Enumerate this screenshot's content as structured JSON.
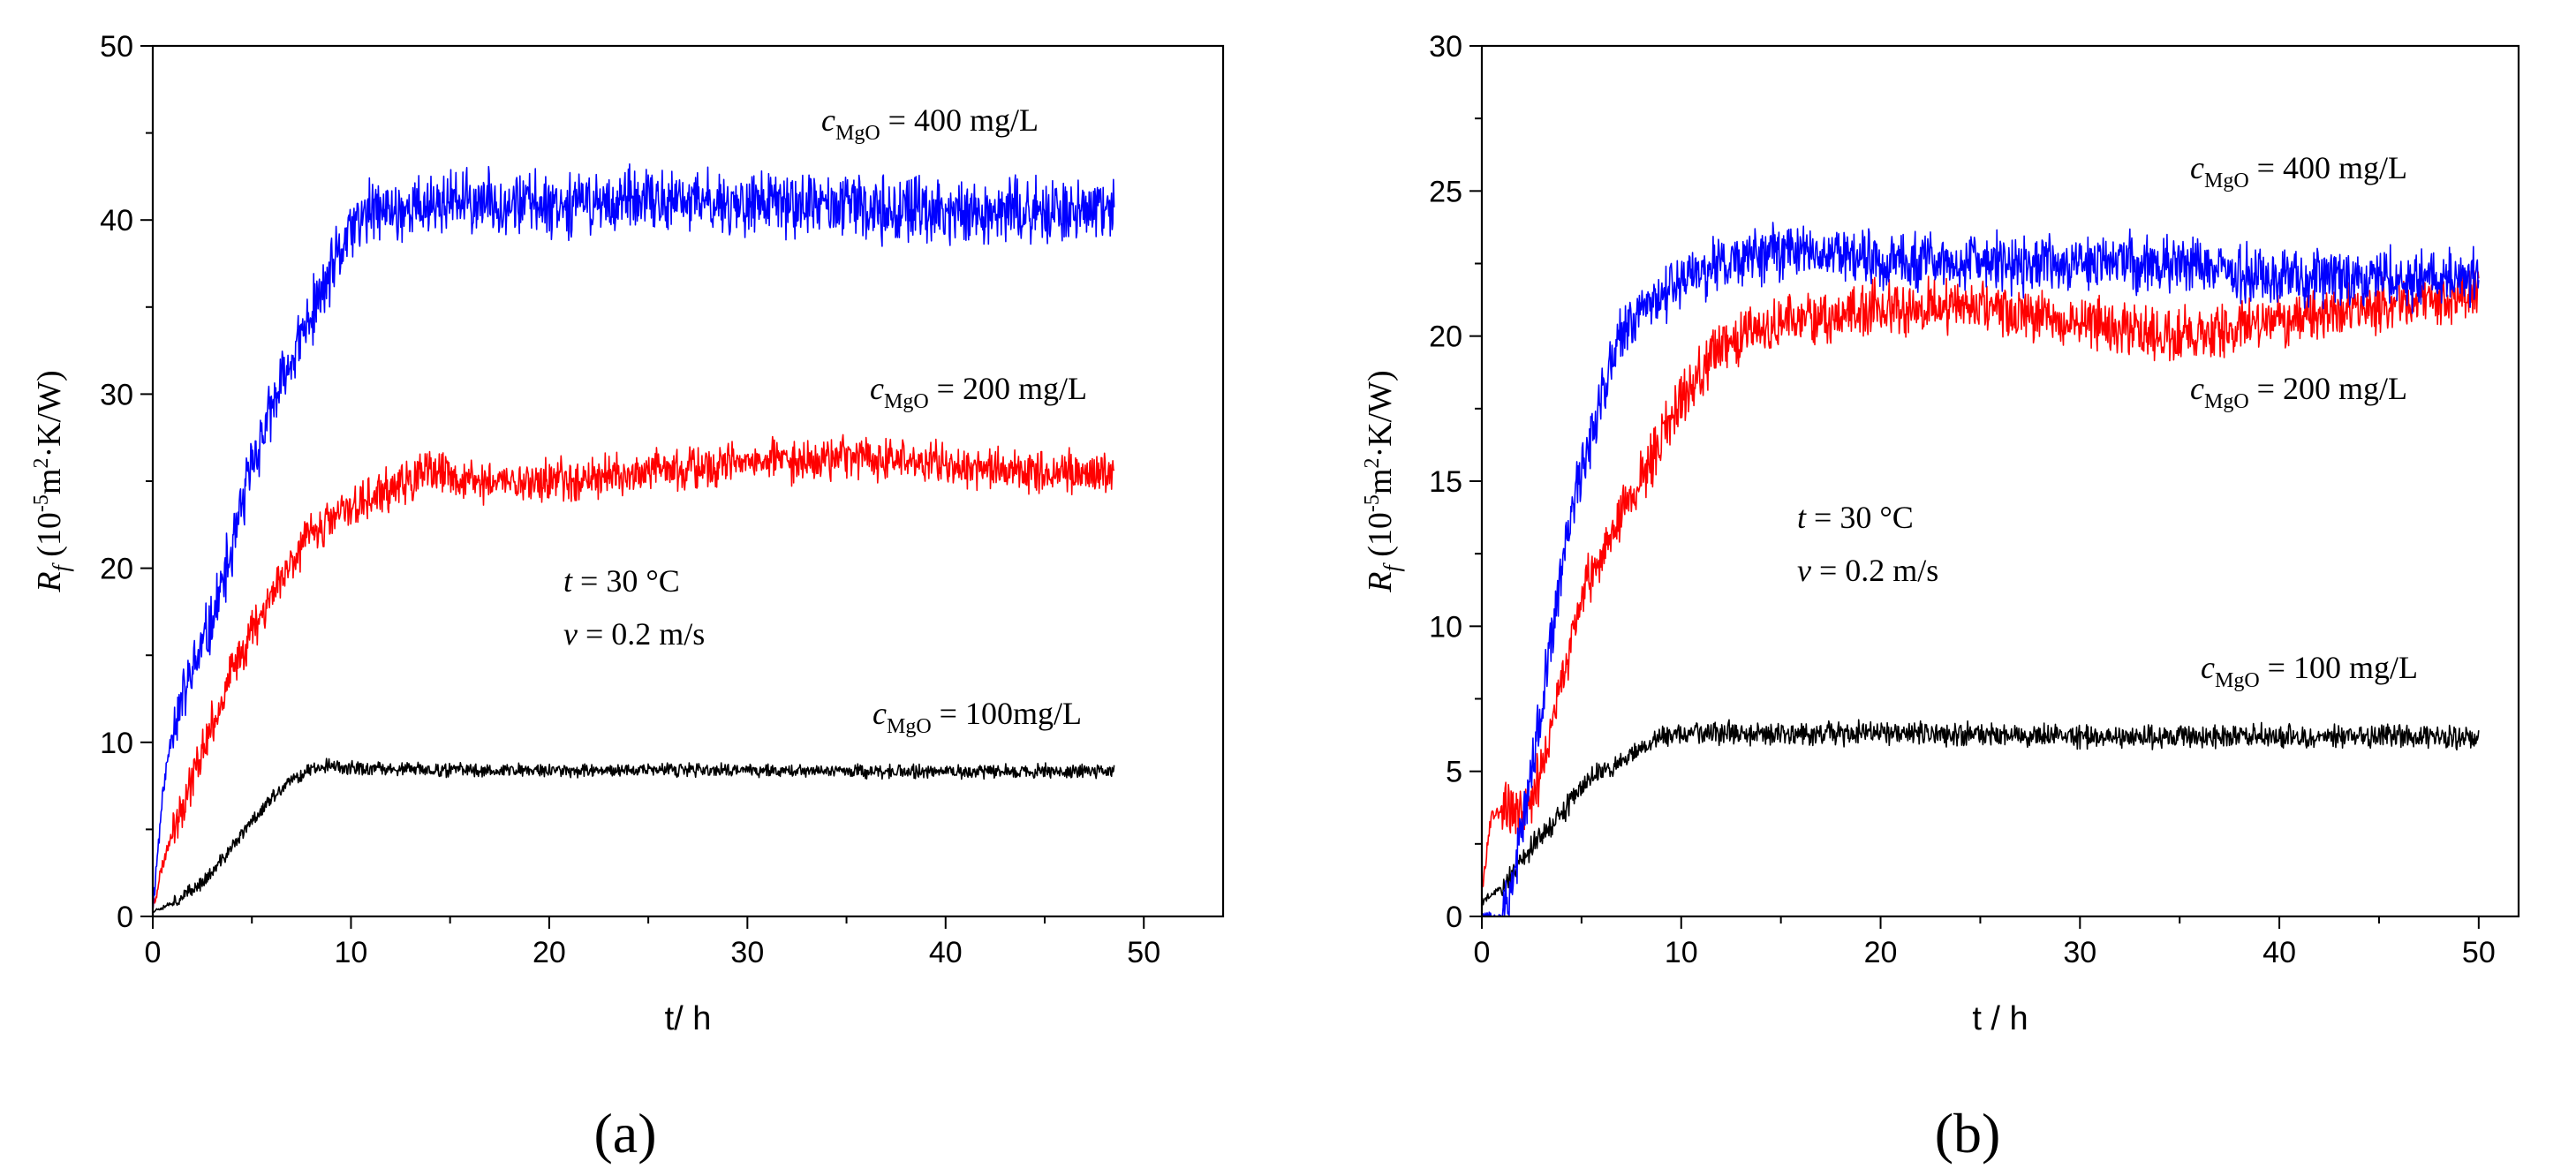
{
  "chart_data": [
    {
      "type": "line",
      "panel_label": "(a)",
      "xlabel": "t/ h",
      "ylabel": {
        "symbol": "R",
        "subscript": "f",
        "unit_pre": " (10",
        "sup1": "-5",
        "unit_mid": "m",
        "sup2": "2",
        "unit_post": "·K/W)"
      },
      "xlim": [
        0,
        54
      ],
      "ylim": [
        0,
        50
      ],
      "xticks": [
        0,
        10,
        20,
        30,
        40,
        50
      ],
      "yticks": [
        0,
        10,
        20,
        30,
        40,
        50
      ],
      "conditions": {
        "t_sym": "t",
        "t_rest": " = 30 °C",
        "v_sym": "v",
        "v_rest": " = 0.2 m/s"
      },
      "series": [
        {
          "name": "400 mg/L",
          "label_sym": "c",
          "label_sub": "MgO",
          "label_rest": " = 400 mg/L",
          "color": "#0000ff",
          "noise": 1.6,
          "seed": 11,
          "x": [
            0,
            0.5,
            1,
            2,
            3,
            4,
            5,
            6,
            7,
            8,
            9,
            10,
            11,
            12,
            15,
            20,
            30,
            40,
            48.5
          ],
          "y": [
            0.5,
            7,
            11,
            14,
            17,
            21,
            26,
            29,
            32,
            34.5,
            37,
            39.5,
            40.5,
            40.5,
            41,
            41,
            41,
            40.5,
            40.5
          ]
        },
        {
          "name": "200 mg/L",
          "label_sym": "c",
          "label_sub": "MgO",
          "label_rest": " = 200 mg/L",
          "color": "#ff0000",
          "noise": 1.1,
          "seed": 23,
          "x": [
            0,
            0.5,
            1,
            2,
            3,
            4,
            5,
            6,
            7,
            8,
            10,
            12,
            14,
            16,
            20,
            25,
            30,
            35,
            40,
            45,
            48.5
          ],
          "y": [
            0.5,
            3,
            5,
            8,
            11,
            14,
            16.5,
            18.5,
            20.5,
            22,
            23.5,
            24.5,
            25.5,
            25,
            25,
            25.5,
            26,
            26.5,
            26,
            25.5,
            25.5
          ]
        },
        {
          "name": "100 mg/L",
          "label_sym": "c",
          "label_sub": "MgO",
          "label_rest": " = 100mg/L",
          "color": "#000000",
          "noise": 0.35,
          "seed": 37,
          "x": [
            0,
            1,
            2,
            3,
            4,
            5,
            6,
            7,
            8,
            9,
            10,
            15,
            20,
            30,
            40,
            48.5
          ],
          "y": [
            0.3,
            0.8,
            1.5,
            2.5,
            4,
            5.5,
            6.8,
            7.8,
            8.5,
            8.7,
            8.5,
            8.4,
            8.4,
            8.4,
            8.3,
            8.4
          ]
        }
      ]
    },
    {
      "type": "line",
      "panel_label": "(b)",
      "xlabel": "t / h",
      "ylabel": {
        "symbol": "R",
        "subscript": "f",
        "unit_pre": " (10",
        "sup1": "-5",
        "unit_mid": "m",
        "sup2": "2",
        "unit_post": "·K/W)"
      },
      "xlim": [
        0,
        52
      ],
      "ylim": [
        0,
        30
      ],
      "xticks": [
        0,
        10,
        20,
        30,
        40,
        50
      ],
      "yticks": [
        0,
        5,
        10,
        15,
        20,
        25,
        30
      ],
      "conditions": {
        "t_sym": "t",
        "t_rest": " = 30 °C",
        "v_sym": "v",
        "v_rest": " = 0.2 m/s"
      },
      "series": [
        {
          "name": "400 mg/L",
          "label_sym": "c",
          "label_sub": "MgO",
          "label_rest": " = 400 mg/L",
          "color": "#0000ff",
          "noise": 0.9,
          "seed": 53,
          "x": [
            0,
            1,
            1.3,
            2,
            3,
            4,
            5,
            6,
            7,
            8,
            9,
            10,
            12,
            15,
            18,
            20,
            25,
            30,
            35,
            40,
            45,
            50
          ],
          "y": [
            0,
            0,
            0.5,
            3,
            7,
            12,
            15.5,
            18,
            20,
            21,
            21.5,
            22,
            22.5,
            23,
            23,
            22.5,
            22.5,
            22.5,
            22.5,
            22,
            22,
            22
          ]
        },
        {
          "name": "200 mg/L",
          "label_sym": "c",
          "label_sub": "MgO",
          "label_rest": " = 200 mg/L",
          "color": "#ff0000",
          "noise": 0.8,
          "seed": 67,
          "x": [
            0,
            0.5,
            1,
            2,
            3,
            4,
            5,
            6,
            7,
            8,
            9,
            10,
            12,
            15,
            20,
            25,
            30,
            35,
            40,
            45,
            50
          ],
          "y": [
            1,
            3.5,
            3.8,
            3.5,
            5,
            8,
            11,
            12.5,
            14,
            15,
            16.5,
            18,
            19.5,
            20.5,
            21,
            21,
            20.5,
            20,
            20.5,
            21,
            21.5
          ]
        },
        {
          "name": "100 mg/L",
          "label_sym": "c",
          "label_sub": "MgO",
          "label_rest": " = 100 mg/L",
          "color": "#000000",
          "noise": 0.35,
          "seed": 79,
          "x": [
            0,
            1,
            2,
            3,
            4,
            5,
            6,
            7,
            8,
            9,
            10,
            15,
            20,
            30,
            40,
            50
          ],
          "y": [
            0.5,
            1,
            2,
            2.8,
            3.5,
            4.5,
            5,
            5.3,
            5.8,
            6.2,
            6.3,
            6.3,
            6.3,
            6.2,
            6.2,
            6.2
          ]
        }
      ]
    }
  ]
}
